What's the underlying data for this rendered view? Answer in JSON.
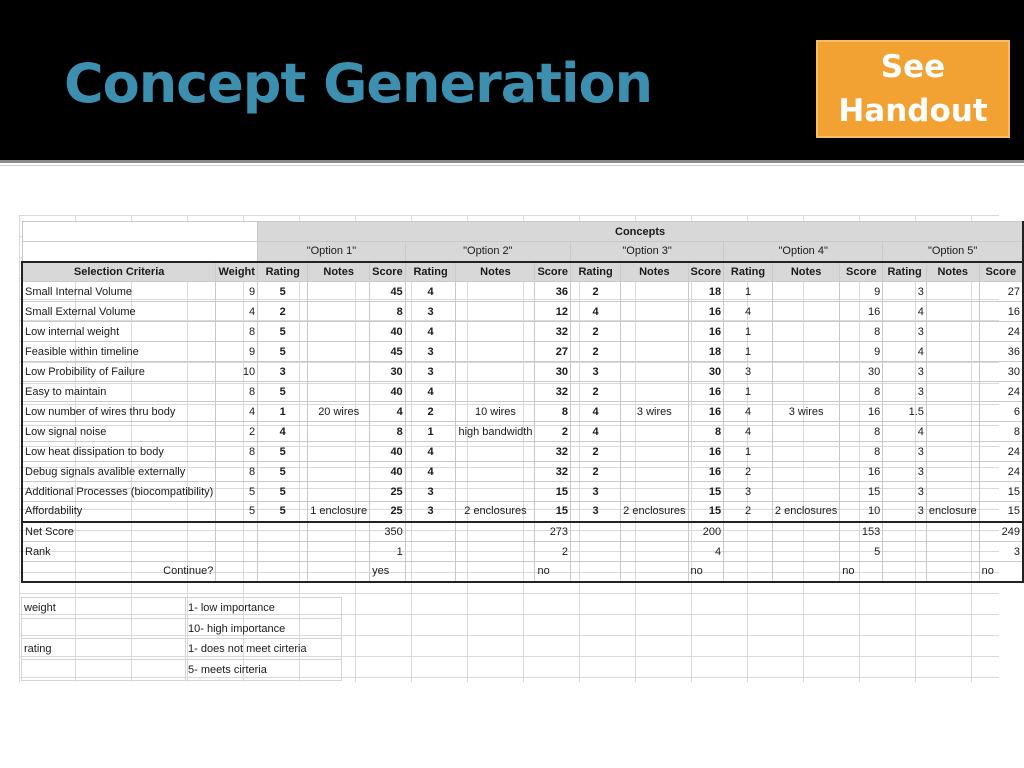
{
  "slide": {
    "title": "Concept Generation",
    "handout_line1": "See",
    "handout_line2": "Handout"
  },
  "matrix": {
    "concepts_label": "Concepts",
    "options": [
      "\"Option 1\"",
      "\"Option 2\"",
      "\"Option 3\"",
      "\"Option 4\"",
      "\"Option 5\""
    ],
    "criteria_header": "Selection Criteria",
    "weight_header": "Weight",
    "sub_headers": [
      "Rating",
      "Notes",
      "Score"
    ],
    "rows": [
      {
        "criterion": "Small Internal Volume",
        "weight": "9",
        "opts": [
          [
            "5",
            "",
            "45"
          ],
          [
            "4",
            "",
            "36"
          ],
          [
            "2",
            "",
            "18"
          ],
          [
            "1",
            "",
            "9"
          ],
          [
            "3",
            "",
            "27"
          ]
        ]
      },
      {
        "criterion": "Small External Volume",
        "weight": "4",
        "opts": [
          [
            "2",
            "",
            "8"
          ],
          [
            "3",
            "",
            "12"
          ],
          [
            "4",
            "",
            "16"
          ],
          [
            "4",
            "",
            "16"
          ],
          [
            "4",
            "",
            "16"
          ]
        ]
      },
      {
        "criterion": "Low internal weight",
        "weight": "8",
        "opts": [
          [
            "5",
            "",
            "40"
          ],
          [
            "4",
            "",
            "32"
          ],
          [
            "2",
            "",
            "16"
          ],
          [
            "1",
            "",
            "8"
          ],
          [
            "3",
            "",
            "24"
          ]
        ]
      },
      {
        "criterion": "Feasible within timeline",
        "weight": "9",
        "opts": [
          [
            "5",
            "",
            "45"
          ],
          [
            "3",
            "",
            "27"
          ],
          [
            "2",
            "",
            "18"
          ],
          [
            "1",
            "",
            "9"
          ],
          [
            "4",
            "",
            "36"
          ]
        ]
      },
      {
        "criterion": "Low Probibility of Failure",
        "weight": "10",
        "opts": [
          [
            "3",
            "",
            "30"
          ],
          [
            "3",
            "",
            "30"
          ],
          [
            "3",
            "",
            "30"
          ],
          [
            "3",
            "",
            "30"
          ],
          [
            "3",
            "",
            "30"
          ]
        ]
      },
      {
        "criterion": "Easy to maintain",
        "weight": "8",
        "opts": [
          [
            "5",
            "",
            "40"
          ],
          [
            "4",
            "",
            "32"
          ],
          [
            "2",
            "",
            "16"
          ],
          [
            "1",
            "",
            "8"
          ],
          [
            "3",
            "",
            "24"
          ]
        ]
      },
      {
        "criterion": "Low number of wires thru body",
        "weight": "4",
        "opts": [
          [
            "1",
            "20 wires",
            "4"
          ],
          [
            "2",
            "10 wires",
            "8"
          ],
          [
            "4",
            "3 wires",
            "16"
          ],
          [
            "4",
            "3 wires",
            "16"
          ],
          [
            "1.5",
            "",
            "6"
          ]
        ]
      },
      {
        "criterion": "Low signal noise",
        "weight": "2",
        "opts": [
          [
            "4",
            "",
            "8"
          ],
          [
            "1",
            "high bandwidth",
            "2"
          ],
          [
            "4",
            "",
            "8"
          ],
          [
            "4",
            "",
            "8"
          ],
          [
            "4",
            "",
            "8"
          ]
        ]
      },
      {
        "criterion": "Low heat dissipation to body",
        "weight": "8",
        "opts": [
          [
            "5",
            "",
            "40"
          ],
          [
            "4",
            "",
            "32"
          ],
          [
            "2",
            "",
            "16"
          ],
          [
            "1",
            "",
            "8"
          ],
          [
            "3",
            "",
            "24"
          ]
        ]
      },
      {
        "criterion": "Debug signals avalible externally",
        "weight": "8",
        "opts": [
          [
            "5",
            "",
            "40"
          ],
          [
            "4",
            "",
            "32"
          ],
          [
            "2",
            "",
            "16"
          ],
          [
            "2",
            "",
            "16"
          ],
          [
            "3",
            "",
            "24"
          ]
        ]
      },
      {
        "criterion": "Additional Processes (biocompatibility)",
        "weight": "5",
        "opts": [
          [
            "5",
            "",
            "25"
          ],
          [
            "3",
            "",
            "15"
          ],
          [
            "3",
            "",
            "15"
          ],
          [
            "3",
            "",
            "15"
          ],
          [
            "3",
            "",
            "15"
          ]
        ]
      },
      {
        "criterion": "Affordability",
        "weight": "5",
        "opts": [
          [
            "5",
            "1 enclosure",
            "25"
          ],
          [
            "3",
            "2 enclosures",
            "15"
          ],
          [
            "3",
            "2 enclosures",
            "15"
          ],
          [
            "2",
            "2 enclosures",
            "10"
          ],
          [
            "3",
            "enclosure",
            "15"
          ]
        ]
      }
    ],
    "net_score_label": "Net Score",
    "net_scores": [
      "350",
      "273",
      "200",
      "153",
      "249"
    ],
    "rank_label": "Rank",
    "ranks": [
      "1",
      "2",
      "4",
      "5",
      "3"
    ],
    "continue_label": "Continue?",
    "continues": [
      "yes",
      "no",
      "no",
      "no",
      "no"
    ]
  },
  "legend": [
    {
      "term": "weight",
      "desc": "1- low importance"
    },
    {
      "term": "",
      "desc": "10- high importance"
    },
    {
      "term": "rating",
      "desc": "1- does not meet cirteria"
    },
    {
      "term": "",
      "desc": "5- meets cirteria"
    }
  ]
}
